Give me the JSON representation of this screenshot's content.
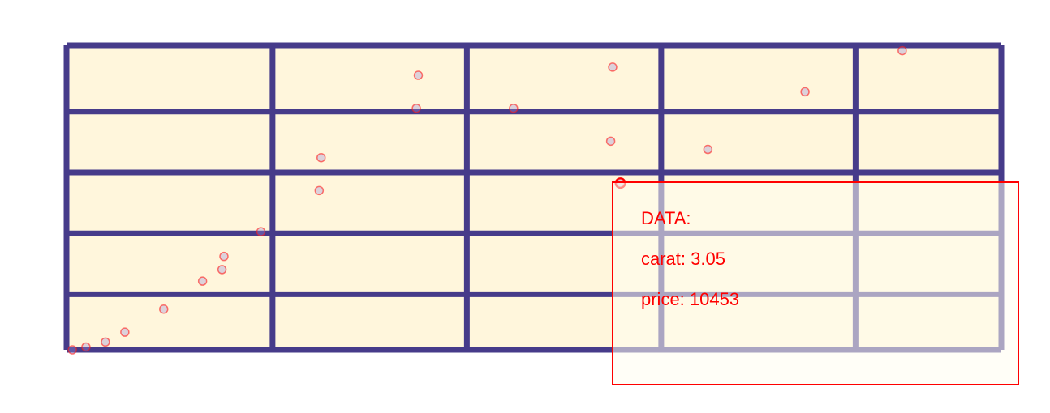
{
  "chart_data": {
    "type": "scatter",
    "title": "",
    "xlabel": "",
    "ylabel": "",
    "xlim": [
      0.2,
      5.01
    ],
    "ylim": [
      326,
      18823
    ],
    "x_gridlines": [
      1.26,
      2.26,
      3.26,
      4.26
    ],
    "y_gridlines": [
      3700,
      7400,
      11100,
      14800
    ],
    "grid": true,
    "point_style": "hollow circles, semi-transparent",
    "series": [
      {
        "values": [
          [
            0.23,
            326
          ],
          [
            0.3,
            500
          ],
          [
            0.4,
            800
          ],
          [
            0.5,
            1400
          ],
          [
            0.7,
            2800
          ],
          [
            0.9,
            4500
          ],
          [
            1.0,
            5200
          ],
          [
            1.01,
            6000
          ],
          [
            1.2,
            7500
          ],
          [
            1.5,
            10000
          ],
          [
            1.51,
            12000
          ],
          [
            2.0,
            15000
          ],
          [
            2.01,
            17000
          ],
          [
            2.5,
            15000
          ],
          [
            3.0,
            13000
          ],
          [
            3.01,
            17500
          ],
          [
            3.05,
            10453
          ],
          [
            3.5,
            12500
          ],
          [
            4.0,
            16000
          ],
          [
            4.5,
            18500
          ]
        ]
      }
    ],
    "highlight": {
      "x": 3.05,
      "y": 10453
    }
  },
  "tooltip": {
    "heading": "DATA:",
    "carat_line": "carat: 3.05",
    "price_line": "price: 10453"
  },
  "colors": {
    "plot_background": "#fff6dc",
    "grid": "#463b8a",
    "point_stroke": "#ff1a1a",
    "point_fill": "#9b8bd6",
    "tooltip_border": "#ff0000",
    "tooltip_text": "#ff0000"
  }
}
